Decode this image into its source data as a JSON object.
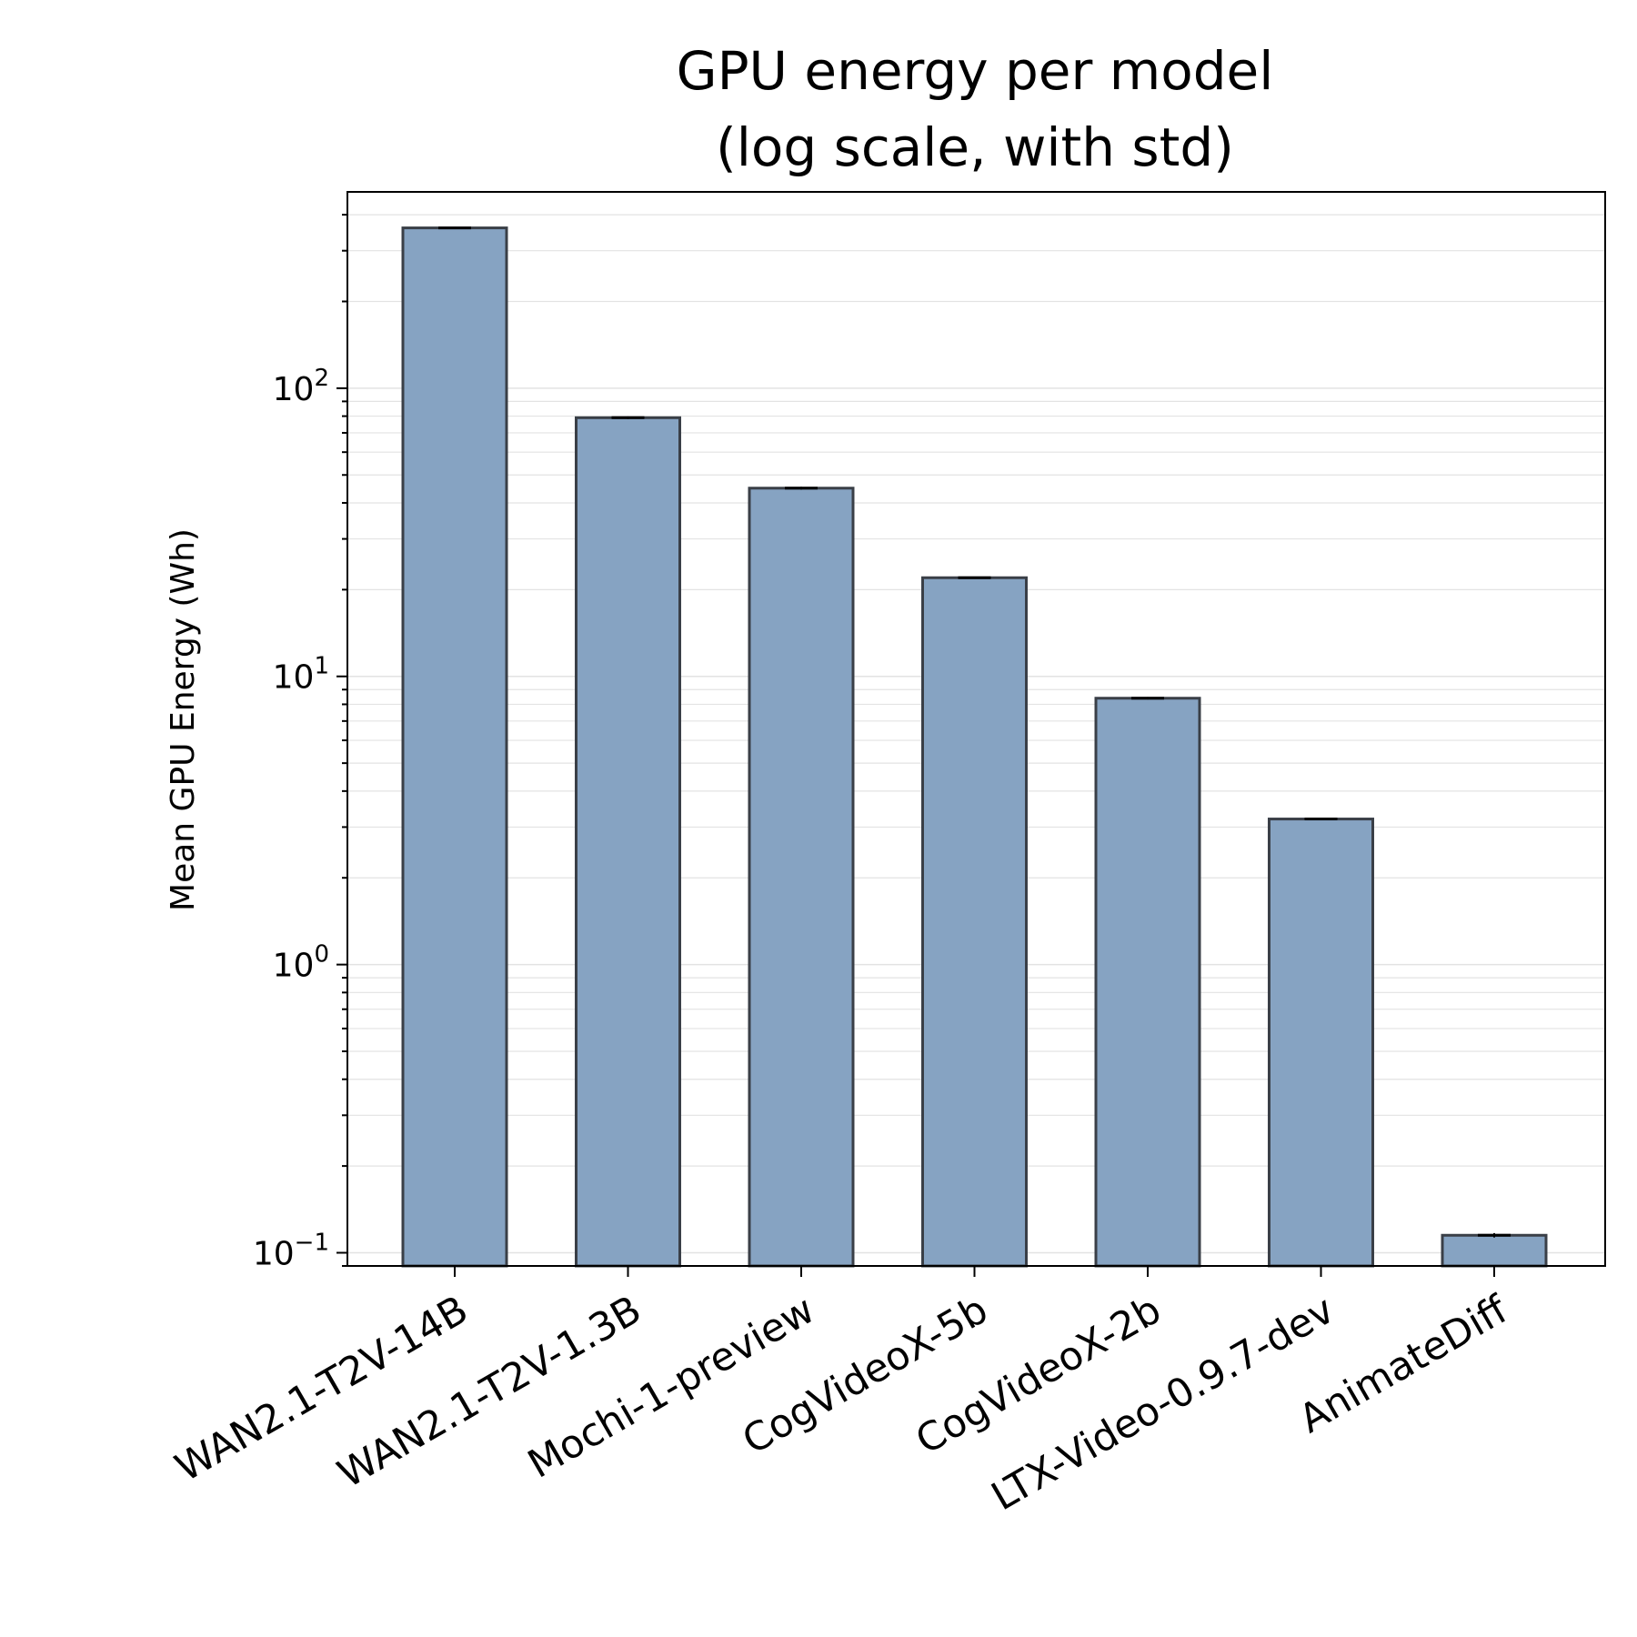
{
  "colors": {
    "bar_fill": "#86a3c2",
    "bar_edge": "#3a3f47",
    "grid": "#e3e3e3",
    "axis": "#000000"
  },
  "chart_data": {
    "type": "bar",
    "title_lines": [
      "GPU energy per model",
      "(log scale, with std)"
    ],
    "xlabel": "",
    "ylabel": "Mean GPU Energy (Wh)",
    "yscale": "log",
    "ylim": [
      0.09,
      480
    ],
    "yticks": [
      {
        "value": 100,
        "base": "10",
        "exp": "2"
      },
      {
        "value": 10,
        "base": "10",
        "exp": "1"
      },
      {
        "value": 1,
        "base": "10",
        "exp": "0"
      },
      {
        "value": 0.1,
        "base": "10",
        "exp": "−1"
      }
    ],
    "grid": true,
    "categories": [
      "WAN2.1-T2V-14B",
      "WAN2.1-T2V-1.3B",
      "Mochi-1-preview",
      "CogVideoX-5b",
      "CogVideoX-2b",
      "LTX-Video-0.9.7-dev",
      "AnimateDiff"
    ],
    "values": [
      360,
      79,
      45,
      22,
      8.4,
      3.2,
      0.115
    ],
    "std": [
      3,
      0.8,
      0.5,
      0.2,
      0.08,
      0.03,
      0.002
    ]
  }
}
